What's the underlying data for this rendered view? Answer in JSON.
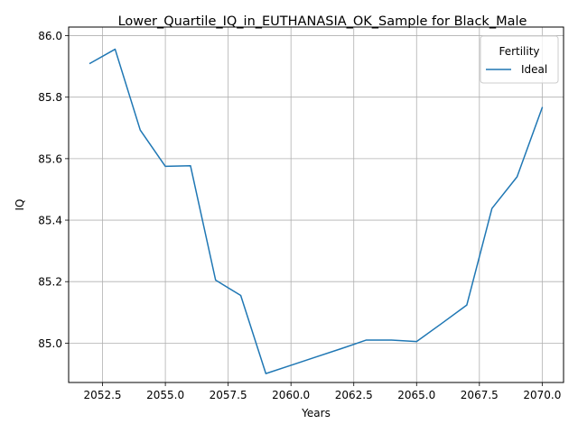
{
  "chart_data": {
    "type": "line",
    "title": "Lower_Quartile_IQ_in_EUTHANASIA_OK_Sample for Black_Male",
    "xlabel": "Years",
    "ylabel": "IQ",
    "xlim": [
      2051.15,
      2070.85
    ],
    "ylim": [
      84.872,
      86.028
    ],
    "xticks": [
      2052.5,
      2055.0,
      2057.5,
      2060.0,
      2062.5,
      2065.0,
      2067.5,
      2070.0
    ],
    "xtick_labels": [
      "2052.5",
      "2055.0",
      "2057.5",
      "2060.0",
      "2062.5",
      "2065.0",
      "2067.5",
      "2070.0"
    ],
    "yticks": [
      85.0,
      85.2,
      85.4,
      85.6,
      85.8,
      86.0
    ],
    "ytick_labels": [
      "85.0",
      "85.2",
      "85.4",
      "85.6",
      "85.8",
      "86.0"
    ],
    "grid": true,
    "legend": {
      "title": "Fertility",
      "placement": "top-right"
    },
    "series": [
      {
        "name": "Ideal",
        "color": "#1f77b4",
        "x": [
          2052,
          2053,
          2054,
          2055,
          2056,
          2057,
          2058,
          2059,
          2060,
          2061,
          2062,
          2063,
          2064,
          2065,
          2066,
          2067,
          2068,
          2069,
          2070
        ],
        "y": [
          85.91,
          85.956,
          85.693,
          85.575,
          85.577,
          85.205,
          85.155,
          84.901,
          84.928,
          84.955,
          84.982,
          85.01,
          85.01,
          85.005,
          85.064,
          85.124,
          85.438,
          85.541,
          85.766
        ]
      }
    ]
  }
}
